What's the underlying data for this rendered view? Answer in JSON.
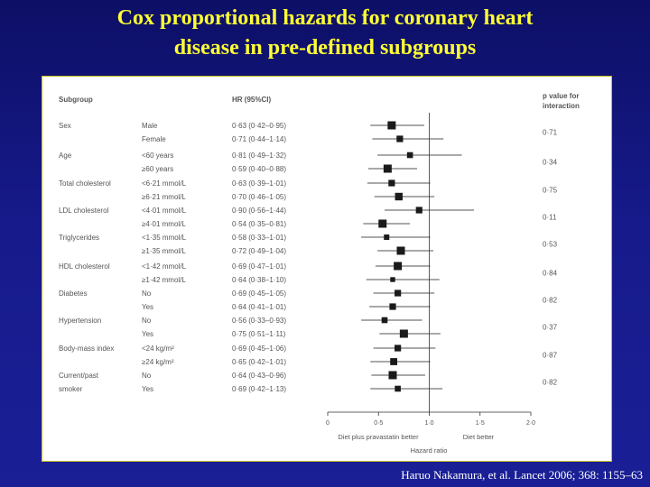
{
  "title": {
    "line1": "Cox proportional hazards for coronary heart",
    "line2": "disease in pre-defined subgroups"
  },
  "citation": "Haruo Nakamura, et al. Lancet 2006; 368: 1155–63",
  "colors": {
    "background": "#161a8a",
    "title": "#ffff33",
    "panel": "#ffffff",
    "marker": "#1a1a1a",
    "text": "#555555"
  },
  "chart_data": {
    "type": "forest",
    "headers": {
      "subgroup": "Subgroup",
      "hr": "HR (95%CI)",
      "p_line1": "p value for",
      "p_line2": "interaction"
    },
    "xlim": [
      0,
      2.0
    ],
    "reference_line": 1.0,
    "xticks": [
      "0",
      "0·5",
      "1·0",
      "1·5",
      "2·0"
    ],
    "xtick_values": [
      0,
      0.5,
      1.0,
      1.5,
      2.0
    ],
    "xlabel_left": "Diet plus pravastatin better",
    "xlabel_right": "Diet better",
    "xlabel": "Hazard ratio",
    "groups": [
      {
        "name": "Sex",
        "p": "0·71",
        "rows": [
          {
            "label": "Male",
            "hr_text": "0·63 (0·42–0·95)",
            "hr": 0.63,
            "lo": 0.42,
            "hi": 0.95,
            "size": 1.0
          },
          {
            "label": "Female",
            "hr_text": "0·71 (0·44–1·14)",
            "hr": 0.71,
            "lo": 0.44,
            "hi": 1.14,
            "size": 0.7
          }
        ]
      },
      {
        "name": "Age",
        "p": "0·34",
        "rows": [
          {
            "label": "<60 years",
            "hr_text": "0·81 (0·49–1·32)",
            "hr": 0.81,
            "lo": 0.49,
            "hi": 1.32,
            "size": 0.6
          },
          {
            "label": "≥60 years",
            "hr_text": "0·59 (0·40–0·88)",
            "hr": 0.59,
            "lo": 0.4,
            "hi": 0.88,
            "size": 1.0
          }
        ]
      },
      {
        "name": "Total cholesterol",
        "p": "0·75",
        "rows": [
          {
            "label": "<6·21 mmol/L",
            "hr_text": "0·63 (0·39–1·01)",
            "hr": 0.63,
            "lo": 0.39,
            "hi": 1.01,
            "size": 0.7
          },
          {
            "label": "≥6·21 mmol/L",
            "hr_text": "0·70 (0·46–1·05)",
            "hr": 0.7,
            "lo": 0.46,
            "hi": 1.05,
            "size": 0.9
          }
        ]
      },
      {
        "name": "LDL cholesterol",
        "p": "0·11",
        "rows": [
          {
            "label": "<4·01 mmol/L",
            "hr_text": "0·90 (0·56–1·44)",
            "hr": 0.9,
            "lo": 0.56,
            "hi": 1.44,
            "size": 0.7
          },
          {
            "label": "≥4·01 mmol/L",
            "hr_text": "0·54 (0·35–0·81)",
            "hr": 0.54,
            "lo": 0.35,
            "hi": 0.81,
            "size": 1.0
          }
        ]
      },
      {
        "name": "Triglycerides",
        "p": "0·53",
        "rows": [
          {
            "label": "<1·35 mmol/L",
            "hr_text": "0·58 (0·33–1·01)",
            "hr": 0.58,
            "lo": 0.33,
            "hi": 1.01,
            "size": 0.5
          },
          {
            "label": "≥1·35 mmol/L",
            "hr_text": "0·72 (0·49–1·04)",
            "hr": 0.72,
            "lo": 0.49,
            "hi": 1.04,
            "size": 1.0
          }
        ]
      },
      {
        "name": "HDL cholesterol",
        "p": "0·84",
        "rows": [
          {
            "label": "<1·42 mmol/L",
            "hr_text": "0·69 (0·47–1·01)",
            "hr": 0.69,
            "lo": 0.47,
            "hi": 1.01,
            "size": 1.0
          },
          {
            "label": "≥1·42 mmol/L",
            "hr_text": "0·64 (0·38–1·10)",
            "hr": 0.64,
            "lo": 0.38,
            "hi": 1.1,
            "size": 0.4
          }
        ]
      },
      {
        "name": "Diabetes",
        "p": "0·82",
        "rows": [
          {
            "label": "No",
            "hr_text": "0·69 (0·45–1·05)",
            "hr": 0.69,
            "lo": 0.45,
            "hi": 1.05,
            "size": 0.7
          },
          {
            "label": "Yes",
            "hr_text": "0·64 (0·41–1·01)",
            "hr": 0.64,
            "lo": 0.41,
            "hi": 1.01,
            "size": 0.7
          }
        ]
      },
      {
        "name": "Hypertension",
        "p": "0·37",
        "rows": [
          {
            "label": "No",
            "hr_text": "0·56 (0·33–0·93)",
            "hr": 0.56,
            "lo": 0.33,
            "hi": 0.93,
            "size": 0.6
          },
          {
            "label": "Yes",
            "hr_text": "0·75 (0·51–1·11)",
            "hr": 0.75,
            "lo": 0.51,
            "hi": 1.11,
            "size": 1.0
          }
        ]
      },
      {
        "name": "Body-mass index",
        "p": "0·87",
        "rows": [
          {
            "label": "<24 kg/m²",
            "hr_text": "0·69 (0·45–1·06)",
            "hr": 0.69,
            "lo": 0.45,
            "hi": 1.06,
            "size": 0.7
          },
          {
            "label": "≥24 kg/m²",
            "hr_text": "0·65 (0·42–1·01)",
            "hr": 0.65,
            "lo": 0.42,
            "hi": 1.01,
            "size": 0.8
          }
        ]
      },
      {
        "name": "Current/past",
        "name_line2": "smoker",
        "p": "0·82",
        "rows": [
          {
            "label": "No",
            "hr_text": "0·64 (0·43–0·96)",
            "hr": 0.64,
            "lo": 0.43,
            "hi": 0.96,
            "size": 1.0
          },
          {
            "label": "Yes",
            "hr_text": "0·69 (0·42–1·13)",
            "hr": 0.69,
            "lo": 0.42,
            "hi": 1.13,
            "size": 0.6
          }
        ]
      }
    ]
  }
}
